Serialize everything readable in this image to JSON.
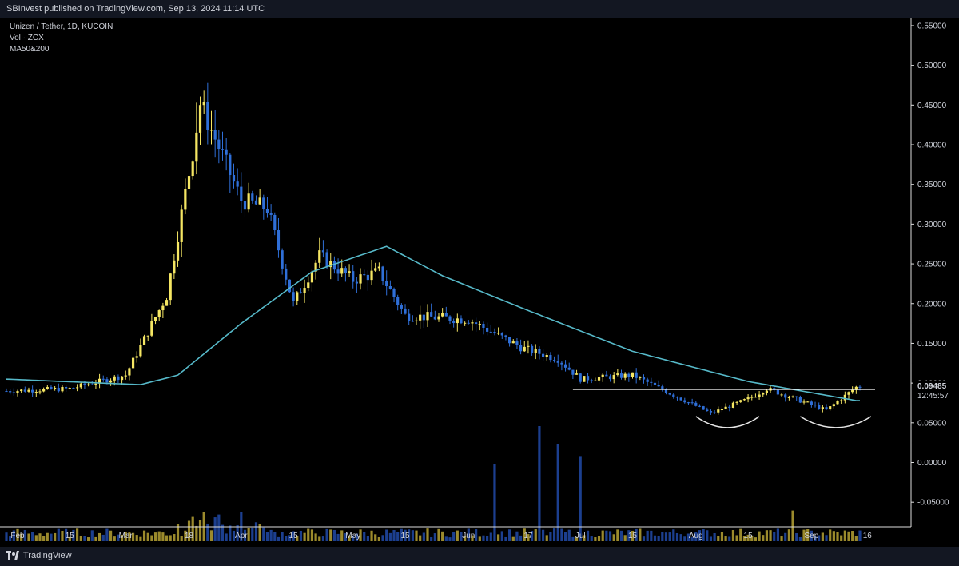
{
  "header": {
    "published": "SBInvest published on TradingView.com, Sep 13, 2024 11:14 UTC"
  },
  "legend": {
    "symbol": "Unizen / Tether, 1D, KUCOIN",
    "volume": "Vol · ZCX",
    "ma": "MA50&200"
  },
  "footer": {
    "brand": "TradingView"
  },
  "price_label": {
    "price": "0.09485",
    "countdown": "12:45:57"
  },
  "colors": {
    "up": "#f5e663",
    "down": "#2f6fd8",
    "vol_up": "#9b8a2c",
    "vol_down": "#1c3f8f",
    "ma": "#56b9c9",
    "background": "#000000",
    "pattern": "#ffffff"
  },
  "chart_data": {
    "type": "candlestick",
    "title": "",
    "y_ticks": [
      "0.55000",
      "0.50000",
      "0.45000",
      "0.40000",
      "0.35000",
      "0.30000",
      "0.25000",
      "0.20000",
      "0.15000",
      "0.10000",
      "0.05000",
      "0.00000",
      "-0.05000"
    ],
    "y_range": [
      -0.08,
      0.56
    ],
    "x_ticks": [
      "Feb",
      "15",
      "Mar",
      "18",
      "Apr",
      "15",
      "May",
      "15",
      "Jun",
      "17",
      "Jul",
      "15",
      "Aug",
      "15",
      "Sep",
      "16"
    ],
    "key_points": [
      {
        "date": "Jan 29",
        "close": 0.09
      },
      {
        "date": "Feb 15",
        "close": 0.093
      },
      {
        "date": "Mar 1",
        "close": 0.11
      },
      {
        "date": "Mar 12",
        "close": 0.21
      },
      {
        "date": "Mar 19",
        "close": 0.39
      },
      {
        "date": "Mar 21",
        "close": 0.452
      },
      {
        "date": "Apr 1",
        "close": 0.33
      },
      {
        "date": "Apr 8",
        "close": 0.32
      },
      {
        "date": "Apr 15",
        "close": 0.2
      },
      {
        "date": "Apr 22",
        "close": 0.26
      },
      {
        "date": "May 1",
        "close": 0.23
      },
      {
        "date": "May 8",
        "close": 0.24
      },
      {
        "date": "May 15",
        "close": 0.185
      },
      {
        "date": "Jun 1",
        "close": 0.18
      },
      {
        "date": "Jun 15",
        "close": 0.145
      },
      {
        "date": "Jun 25",
        "close": 0.13
      },
      {
        "date": "Jul 1",
        "close": 0.105
      },
      {
        "date": "Jul 15",
        "close": 0.11
      },
      {
        "date": "Aug 5",
        "close": 0.062
      },
      {
        "date": "Aug 15",
        "close": 0.08
      },
      {
        "date": "Aug 20",
        "close": 0.093
      },
      {
        "date": "Sep 5",
        "close": 0.066
      },
      {
        "date": "Sep 13",
        "close": 0.09485
      }
    ],
    "ma_points": [
      {
        "date": "Jan 29",
        "value": 0.105
      },
      {
        "date": "Mar 5",
        "value": 0.098
      },
      {
        "date": "Mar 15",
        "value": 0.11
      },
      {
        "date": "Apr 1",
        "value": 0.175
      },
      {
        "date": "Apr 20",
        "value": 0.24
      },
      {
        "date": "May 10",
        "value": 0.272
      },
      {
        "date": "May 25",
        "value": 0.235
      },
      {
        "date": "Jun 15",
        "value": 0.195
      },
      {
        "date": "Jul 15",
        "value": 0.14
      },
      {
        "date": "Aug 15",
        "value": 0.102
      },
      {
        "date": "Sep 13",
        "value": 0.078
      }
    ],
    "resistance": 0.092,
    "volume_spikes": [
      {
        "date": "Mar 19",
        "value": 0.95
      },
      {
        "date": "Jun 8",
        "value": 3.0
      },
      {
        "date": "Jun 20",
        "value": 4.5
      },
      {
        "date": "Jun 25",
        "value": 3.8
      },
      {
        "date": "Jul 1",
        "value": 3.3
      },
      {
        "date": "Aug 27",
        "value": 1.2
      }
    ],
    "grid": false,
    "log_scale": false
  }
}
